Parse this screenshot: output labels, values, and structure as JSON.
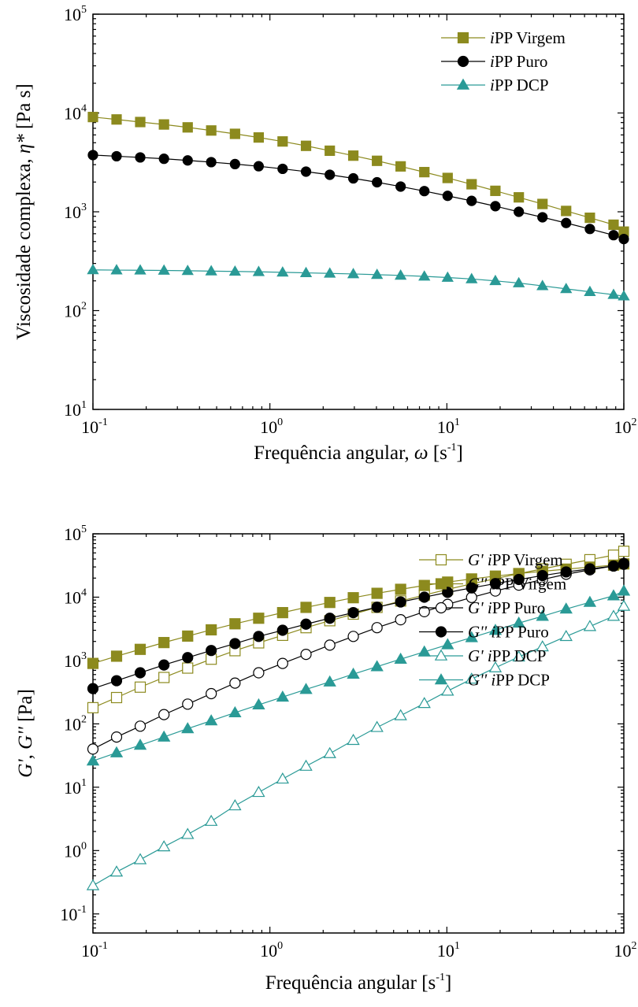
{
  "chart_data": [
    {
      "type": "line",
      "xscale": "log",
      "yscale": "log",
      "xlim": [
        0.1,
        100
      ],
      "ylim": [
        10,
        100000
      ],
      "x_ticks": [
        "10",
        "10",
        "10",
        "10"
      ],
      "x_tick_exponents": [
        "-1",
        "0",
        "1",
        "2"
      ],
      "y_ticks": [
        "10",
        "10",
        "10",
        "10",
        "10"
      ],
      "y_tick_exponents": [
        "1",
        "2",
        "3",
        "4",
        "5"
      ],
      "xlabel": "Frequência angular, ω [s-1]",
      "xlabel_parts": {
        "text": "Frequência angular, ",
        "symbol": "ω",
        "bracket_open": " [s",
        "exp": "-1",
        "bracket_close": "]"
      },
      "ylabel": "Viscosidade complexa, η* [Pa s]",
      "ylabel_parts": {
        "text": "Viscosidade complexa, ",
        "symbol": "η*",
        "unit": " [Pa s]"
      },
      "legend_position": "top-right",
      "grid": false,
      "series": [
        {
          "name": "iPP Virgem",
          "name_italic": "i",
          "name_rest": "PP Virgem",
          "marker": "square",
          "filled": true,
          "color": "#8c8a1e",
          "x": [
            0.1,
            0.136,
            0.185,
            0.252,
            0.343,
            0.466,
            0.635,
            0.864,
            1.18,
            1.6,
            2.18,
            2.96,
            4.03,
            5.48,
            7.46,
            10.1,
            13.8,
            18.8,
            25.5,
            34.7,
            47.2,
            64.3,
            87.5,
            100
          ],
          "y": [
            9100,
            8600,
            8100,
            7650,
            7150,
            6650,
            6150,
            5650,
            5150,
            4650,
            4150,
            3700,
            3280,
            2880,
            2520,
            2200,
            1900,
            1630,
            1400,
            1200,
            1020,
            870,
            740,
            630
          ]
        },
        {
          "name": "iPP Puro",
          "name_italic": "i",
          "name_rest": "PP Puro",
          "marker": "circle",
          "filled": true,
          "color": "#000000",
          "x": [
            0.1,
            0.136,
            0.185,
            0.252,
            0.343,
            0.466,
            0.635,
            0.864,
            1.18,
            1.6,
            2.18,
            2.96,
            4.03,
            5.48,
            7.46,
            10.1,
            13.8,
            18.8,
            25.5,
            34.7,
            47.2,
            64.3,
            87.5,
            100
          ],
          "y": [
            3750,
            3650,
            3550,
            3440,
            3310,
            3180,
            3040,
            2890,
            2720,
            2550,
            2370,
            2180,
            1990,
            1800,
            1620,
            1450,
            1290,
            1140,
            1000,
            880,
            770,
            670,
            580,
            530
          ]
        },
        {
          "name": "iPP DCP",
          "name_italic": "i",
          "name_rest": "PP DCP",
          "marker": "triangle",
          "filled": true,
          "color": "#2a9a96",
          "x": [
            0.1,
            0.136,
            0.185,
            0.252,
            0.343,
            0.466,
            0.635,
            0.864,
            1.18,
            1.6,
            2.18,
            2.96,
            4.03,
            5.48,
            7.46,
            10.1,
            13.8,
            18.8,
            25.5,
            34.7,
            47.2,
            64.3,
            87.5,
            100
          ],
          "y": [
            258,
            257,
            256,
            255,
            253,
            251,
            249,
            247,
            244,
            241,
            238,
            235,
            231,
            227,
            222,
            216,
            209,
            200,
            190,
            178,
            166,
            155,
            145,
            140
          ]
        }
      ]
    },
    {
      "type": "line",
      "xscale": "log",
      "yscale": "log",
      "xlim": [
        0.1,
        100
      ],
      "ylim": [
        0.05,
        100000
      ],
      "x_ticks": [
        "10",
        "10",
        "10",
        "10"
      ],
      "x_tick_exponents": [
        "-1",
        "0",
        "1",
        "2"
      ],
      "y_ticks": [
        "10",
        "10",
        "10",
        "10",
        "10",
        "10",
        "10"
      ],
      "y_tick_exponents": [
        "-1",
        "0",
        "1",
        "2",
        "3",
        "4",
        "5"
      ],
      "xlabel": "Frequência angular [s-1]",
      "xlabel_parts": {
        "text": "Frequência angular [s",
        "exp": "-1",
        "bracket_close": "]"
      },
      "ylabel": "G', G'' [Pa]",
      "ylabel_parts": {
        "g1": "G'",
        "sep": ", ",
        "g2": "G''",
        "unit": " [Pa]"
      },
      "legend_position": "bottom-right",
      "grid": false,
      "series": [
        {
          "name": "G' iPP Virgem",
          "name_modulus": "G'",
          "name_italic": "i",
          "name_rest": "PP Virgem",
          "marker": "square",
          "filled": false,
          "color": "#8c8a1e",
          "x": [
            0.1,
            0.136,
            0.185,
            0.252,
            0.343,
            0.466,
            0.635,
            0.864,
            1.18,
            1.6,
            2.18,
            2.96,
            4.03,
            5.48,
            7.46,
            10.1,
            13.8,
            18.8,
            25.5,
            34.7,
            47.2,
            64.3,
            87.5,
            100
          ],
          "y": [
            180,
            260,
            380,
            540,
            760,
            1050,
            1430,
            1900,
            2500,
            3300,
            4250,
            5400,
            6900,
            8700,
            10800,
            13300,
            16200,
            19600,
            23500,
            28000,
            33000,
            39000,
            46000,
            53000
          ]
        },
        {
          "name": "G'' iPP Virgem",
          "name_modulus": "G''",
          "name_italic": "i",
          "name_rest": "PP Virgem",
          "marker": "square",
          "filled": true,
          "color": "#8c8a1e",
          "x": [
            0.1,
            0.136,
            0.185,
            0.252,
            0.343,
            0.466,
            0.635,
            0.864,
            1.18,
            1.6,
            2.18,
            2.96,
            4.03,
            5.48,
            7.46,
            10.1,
            13.8,
            18.8,
            25.5,
            34.7,
            47.2,
            64.3,
            87.5,
            100
          ],
          "y": [
            900,
            1170,
            1500,
            1920,
            2430,
            3050,
            3800,
            4650,
            5700,
            6900,
            8250,
            9800,
            11500,
            13300,
            15300,
            17300,
            19400,
            21500,
            23600,
            25600,
            27700,
            29800,
            32000,
            33500
          ]
        },
        {
          "name": "G' iPP Puro",
          "name_modulus": "G'",
          "name_italic": "i",
          "name_rest": "PP Puro",
          "marker": "circle",
          "filled": false,
          "color": "#000000",
          "x": [
            0.1,
            0.136,
            0.185,
            0.252,
            0.343,
            0.466,
            0.635,
            0.864,
            1.18,
            1.6,
            2.18,
            2.96,
            4.03,
            5.48,
            7.46,
            10.1,
            13.8,
            18.8,
            25.5,
            34.7,
            47.2,
            64.3,
            87.5,
            100
          ],
          "y": [
            40,
            62,
            92,
            140,
            205,
            300,
            440,
            640,
            900,
            1250,
            1750,
            2400,
            3300,
            4400,
            5900,
            7700,
            9900,
            12500,
            15500,
            19000,
            23000,
            27000,
            31000,
            33000
          ]
        },
        {
          "name": "G'' iPP Puro",
          "name_modulus": "G''",
          "name_italic": "i",
          "name_rest": "PP Puro",
          "marker": "circle",
          "filled": true,
          "color": "#000000",
          "x": [
            0.1,
            0.136,
            0.185,
            0.252,
            0.343,
            0.466,
            0.635,
            0.864,
            1.18,
            1.6,
            2.18,
            2.96,
            4.03,
            5.48,
            7.46,
            10.1,
            13.8,
            18.8,
            25.5,
            34.7,
            47.2,
            64.3,
            87.5,
            100
          ],
          "y": [
            360,
            480,
            640,
            850,
            1110,
            1440,
            1850,
            2400,
            3000,
            3750,
            4650,
            5700,
            6950,
            8400,
            10000,
            11900,
            14000,
            16400,
            19000,
            21900,
            25000,
            28000,
            31000,
            34000
          ]
        },
        {
          "name": "G' iPP DCP",
          "name_modulus": "G'",
          "name_italic": "i",
          "name_rest": "PP DCP",
          "marker": "triangle",
          "filled": false,
          "color": "#2a9a96",
          "x": [
            0.1,
            0.136,
            0.185,
            0.252,
            0.343,
            0.466,
            0.635,
            0.864,
            1.18,
            1.6,
            2.18,
            2.96,
            4.03,
            5.48,
            7.46,
            10.1,
            13.8,
            18.8,
            25.5,
            34.7,
            47.2,
            64.3,
            87.5,
            100
          ],
          "y": [
            0.28,
            0.46,
            0.72,
            1.15,
            1.8,
            2.9,
            5.1,
            8.3,
            13.5,
            21.5,
            34,
            55,
            88,
            135,
            210,
            330,
            510,
            770,
            1140,
            1650,
            2400,
            3450,
            5000,
            7200
          ]
        },
        {
          "name": "G'' iPP DCP",
          "name_modulus": "G''",
          "name_italic": "i",
          "name_rest": "PP DCP",
          "marker": "triangle",
          "filled": true,
          "color": "#2a9a96",
          "x": [
            0.1,
            0.136,
            0.185,
            0.252,
            0.343,
            0.466,
            0.635,
            0.864,
            1.18,
            1.6,
            2.18,
            2.96,
            4.03,
            5.48,
            7.46,
            10.1,
            13.8,
            18.8,
            25.5,
            34.7,
            47.2,
            64.3,
            87.5,
            100
          ],
          "y": [
            26,
            35,
            46,
            62,
            84,
            112,
            150,
            200,
            265,
            350,
            460,
            610,
            800,
            1050,
            1370,
            1780,
            2300,
            3000,
            3900,
            5000,
            6500,
            8300,
            10500,
            12500
          ]
        }
      ]
    }
  ]
}
